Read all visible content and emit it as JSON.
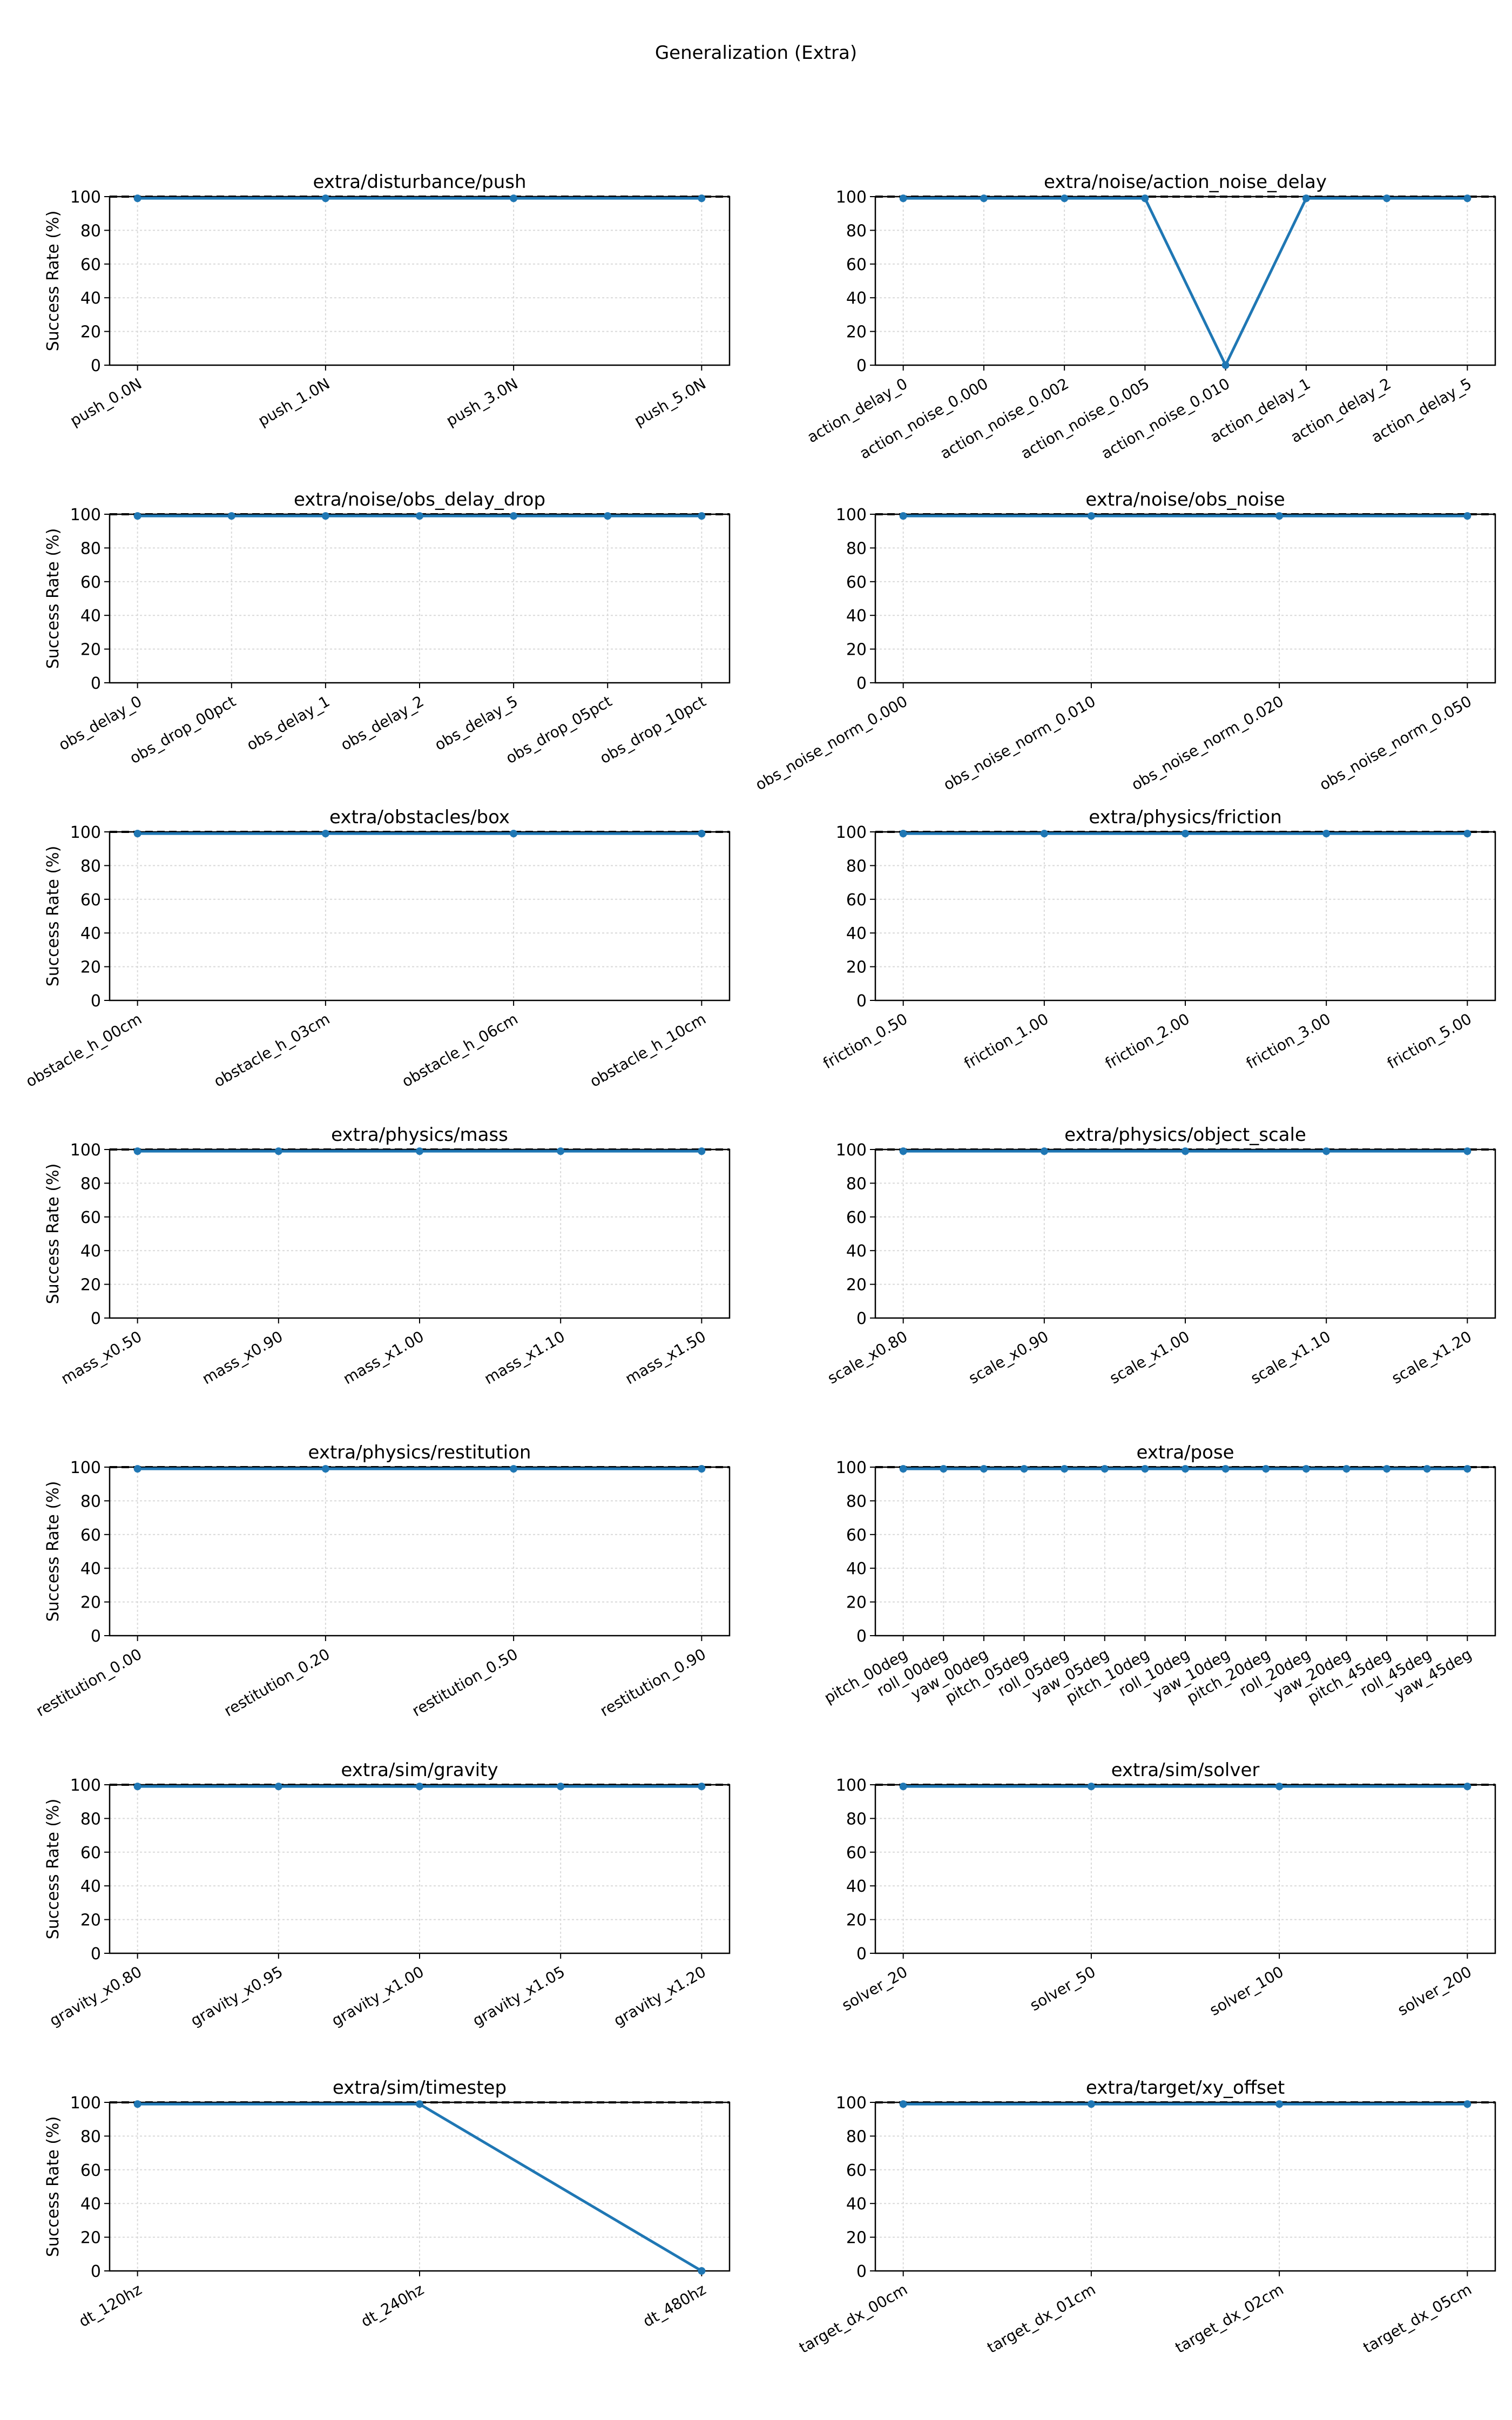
{
  "figure": {
    "title": "Generalization (Extra)",
    "line_color": "#1f77b4",
    "reference_line_color": "#000000",
    "grid_color": "#d9d9d9"
  },
  "chart_data": [
    {
      "type": "line",
      "title": "extra/disturbance/push",
      "ylabel": "Success Rate (%)",
      "ylim": [
        0,
        100
      ],
      "yticks": [
        0,
        20,
        40,
        60,
        80,
        100
      ],
      "reference_line": 100,
      "grid": true,
      "categories": [
        "push_0.0N",
        "push_1.0N",
        "push_3.0N",
        "push_5.0N"
      ],
      "values": [
        99,
        99,
        99,
        99
      ]
    },
    {
      "type": "line",
      "title": "extra/noise/action_noise_delay",
      "ylabel": "",
      "ylim": [
        0,
        100
      ],
      "yticks": [
        0,
        20,
        40,
        60,
        80,
        100
      ],
      "reference_line": 100,
      "grid": true,
      "categories": [
        "action_delay_0",
        "action_noise_0.000",
        "action_noise_0.002",
        "action_noise_0.005",
        "action_noise_0.010",
        "action_delay_1",
        "action_delay_2",
        "action_delay_5"
      ],
      "values": [
        99,
        99,
        99,
        99,
        0,
        99,
        99,
        99
      ]
    },
    {
      "type": "line",
      "title": "extra/noise/obs_delay_drop",
      "ylabel": "Success Rate (%)",
      "ylim": [
        0,
        100
      ],
      "yticks": [
        0,
        20,
        40,
        60,
        80,
        100
      ],
      "reference_line": 100,
      "grid": true,
      "categories": [
        "obs_delay_0",
        "obs_drop_00pct",
        "obs_delay_1",
        "obs_delay_2",
        "obs_delay_5",
        "obs_drop_05pct",
        "obs_drop_10pct"
      ],
      "values": [
        99,
        99,
        99,
        99,
        99,
        99,
        99
      ]
    },
    {
      "type": "line",
      "title": "extra/noise/obs_noise",
      "ylabel": "",
      "ylim": [
        0,
        100
      ],
      "yticks": [
        0,
        20,
        40,
        60,
        80,
        100
      ],
      "reference_line": 100,
      "grid": true,
      "categories": [
        "obs_noise_norm_0.000",
        "obs_noise_norm_0.010",
        "obs_noise_norm_0.020",
        "obs_noise_norm_0.050"
      ],
      "values": [
        99,
        99,
        99,
        99
      ]
    },
    {
      "type": "line",
      "title": "extra/obstacles/box",
      "ylabel": "Success Rate (%)",
      "ylim": [
        0,
        100
      ],
      "yticks": [
        0,
        20,
        40,
        60,
        80,
        100
      ],
      "reference_line": 100,
      "grid": true,
      "categories": [
        "obstacle_h_00cm",
        "obstacle_h_03cm",
        "obstacle_h_06cm",
        "obstacle_h_10cm"
      ],
      "values": [
        99,
        99,
        99,
        99
      ]
    },
    {
      "type": "line",
      "title": "extra/physics/friction",
      "ylabel": "",
      "ylim": [
        0,
        100
      ],
      "yticks": [
        0,
        20,
        40,
        60,
        80,
        100
      ],
      "reference_line": 100,
      "grid": true,
      "categories": [
        "friction_0.50",
        "friction_1.00",
        "friction_2.00",
        "friction_3.00",
        "friction_5.00"
      ],
      "values": [
        99,
        99,
        99,
        99,
        99
      ]
    },
    {
      "type": "line",
      "title": "extra/physics/mass",
      "ylabel": "Success Rate (%)",
      "ylim": [
        0,
        100
      ],
      "yticks": [
        0,
        20,
        40,
        60,
        80,
        100
      ],
      "reference_line": 100,
      "grid": true,
      "categories": [
        "mass_x0.50",
        "mass_x0.90",
        "mass_x1.00",
        "mass_x1.10",
        "mass_x1.50"
      ],
      "values": [
        99,
        99,
        99,
        99,
        99
      ]
    },
    {
      "type": "line",
      "title": "extra/physics/object_scale",
      "ylabel": "",
      "ylim": [
        0,
        100
      ],
      "yticks": [
        0,
        20,
        40,
        60,
        80,
        100
      ],
      "reference_line": 100,
      "grid": true,
      "categories": [
        "scale_x0.80",
        "scale_x0.90",
        "scale_x1.00",
        "scale_x1.10",
        "scale_x1.20"
      ],
      "values": [
        99,
        99,
        99,
        99,
        99
      ]
    },
    {
      "type": "line",
      "title": "extra/physics/restitution",
      "ylabel": "Success Rate (%)",
      "ylim": [
        0,
        100
      ],
      "yticks": [
        0,
        20,
        40,
        60,
        80,
        100
      ],
      "reference_line": 100,
      "grid": true,
      "categories": [
        "restitution_0.00",
        "restitution_0.20",
        "restitution_0.50",
        "restitution_0.90"
      ],
      "values": [
        99,
        99,
        99,
        99
      ]
    },
    {
      "type": "line",
      "title": "extra/pose",
      "ylabel": "",
      "ylim": [
        0,
        100
      ],
      "yticks": [
        0,
        20,
        40,
        60,
        80,
        100
      ],
      "reference_line": 100,
      "grid": true,
      "categories": [
        "pitch_00deg",
        "roll_00deg",
        "yaw_00deg",
        "pitch_05deg",
        "roll_05deg",
        "yaw_05deg",
        "pitch_10deg",
        "roll_10deg",
        "yaw_10deg",
        "pitch_20deg",
        "roll_20deg",
        "yaw_20deg",
        "pitch_45deg",
        "roll_45deg",
        "yaw_45deg"
      ],
      "values": [
        99,
        99,
        99,
        99,
        99,
        99,
        99,
        99,
        99,
        99,
        99,
        99,
        99,
        99,
        99
      ]
    },
    {
      "type": "line",
      "title": "extra/sim/gravity",
      "ylabel": "Success Rate (%)",
      "ylim": [
        0,
        100
      ],
      "yticks": [
        0,
        20,
        40,
        60,
        80,
        100
      ],
      "reference_line": 100,
      "grid": true,
      "categories": [
        "gravity_x0.80",
        "gravity_x0.95",
        "gravity_x1.00",
        "gravity_x1.05",
        "gravity_x1.20"
      ],
      "values": [
        99,
        99,
        99,
        99,
        99
      ]
    },
    {
      "type": "line",
      "title": "extra/sim/solver",
      "ylabel": "",
      "ylim": [
        0,
        100
      ],
      "yticks": [
        0,
        20,
        40,
        60,
        80,
        100
      ],
      "reference_line": 100,
      "grid": true,
      "categories": [
        "solver_20",
        "solver_50",
        "solver_100",
        "solver_200"
      ],
      "values": [
        99,
        99,
        99,
        99
      ]
    },
    {
      "type": "line",
      "title": "extra/sim/timestep",
      "ylabel": "Success Rate (%)",
      "ylim": [
        0,
        100
      ],
      "yticks": [
        0,
        20,
        40,
        60,
        80,
        100
      ],
      "reference_line": 100,
      "grid": true,
      "categories": [
        "dt_120hz",
        "dt_240hz",
        "dt_480hz"
      ],
      "values": [
        99,
        99,
        0
      ]
    },
    {
      "type": "line",
      "title": "extra/target/xy_offset",
      "ylabel": "",
      "ylim": [
        0,
        100
      ],
      "yticks": [
        0,
        20,
        40,
        60,
        80,
        100
      ],
      "reference_line": 100,
      "grid": true,
      "categories": [
        "target_dx_00cm",
        "target_dx_01cm",
        "target_dx_02cm",
        "target_dx_05cm"
      ],
      "values": [
        99,
        99,
        99,
        99
      ]
    }
  ]
}
